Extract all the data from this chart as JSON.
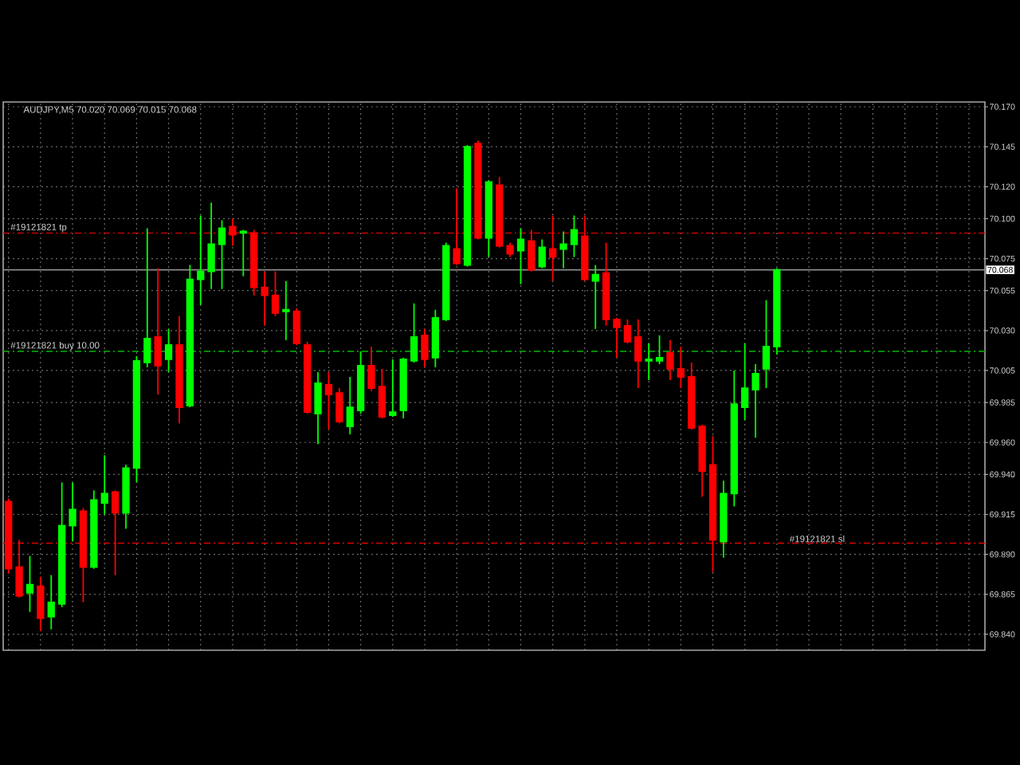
{
  "chart_data": {
    "type": "candlestick",
    "title": "AUDJPY,M5 70.020 70.069 70.015 70.068",
    "categories": [
      null,
      null,
      null,
      null,
      null,
      null,
      null,
      null,
      null,
      null,
      null,
      null,
      null,
      null,
      null,
      null,
      null,
      null,
      null,
      null,
      null,
      null,
      null,
      null,
      null,
      null,
      null,
      null,
      null,
      null,
      null,
      null,
      null,
      null,
      null,
      null,
      null,
      null,
      null,
      null,
      null,
      null,
      null,
      null,
      null,
      null,
      null,
      null,
      null,
      null,
      null,
      null,
      null,
      null,
      null,
      null,
      null,
      null,
      null,
      null,
      null,
      null,
      null,
      null,
      null,
      null,
      null,
      null,
      null,
      null,
      null,
      null,
      null,
      null,
      null,
      null,
      null,
      null,
      null,
      null,
      null,
      null,
      null,
      null,
      null,
      null,
      null,
      null,
      null,
      null,
      null,
      null
    ],
    "ohlc": [
      [
        69.923,
        69.925,
        69.878,
        69.881
      ],
      [
        69.882,
        69.899,
        69.863,
        69.864
      ],
      [
        69.866,
        69.889,
        69.854,
        69.871
      ],
      [
        69.87,
        69.876,
        69.842,
        69.85
      ],
      [
        69.851,
        69.877,
        69.843,
        69.86
      ],
      [
        69.859,
        69.935,
        69.857,
        69.908
      ],
      [
        69.908,
        69.935,
        69.898,
        69.918
      ],
      [
        69.917,
        69.919,
        69.86,
        69.882
      ],
      [
        69.882,
        69.93,
        69.881,
        69.924
      ],
      [
        69.922,
        69.952,
        69.915,
        69.928
      ],
      [
        69.929,
        69.93,
        69.877,
        69.916
      ],
      [
        69.916,
        69.946,
        69.906,
        69.944
      ],
      [
        69.944,
        70.014,
        69.935,
        70.011
      ],
      [
        70.01,
        70.094,
        70.007,
        70.025
      ],
      [
        70.026,
        70.069,
        69.99,
        70.008
      ],
      [
        70.012,
        70.031,
        70.004,
        70.021
      ],
      [
        70.021,
        70.039,
        69.972,
        69.982
      ],
      [
        69.983,
        70.071,
        69.982,
        70.062
      ],
      [
        70.062,
        70.102,
        70.046,
        70.067
      ],
      [
        70.067,
        70.11,
        70.056,
        70.084
      ],
      [
        70.084,
        70.099,
        70.056,
        70.094
      ],
      [
        70.095,
        70.1,
        70.083,
        70.09
      ],
      [
        70.091,
        70.093,
        70.064,
        70.092
      ],
      [
        70.091,
        70.093,
        70.052,
        70.057
      ],
      [
        70.057,
        70.067,
        70.033,
        70.052
      ],
      [
        70.052,
        70.067,
        70.039,
        70.041
      ],
      [
        70.042,
        70.061,
        70.024,
        70.043
      ],
      [
        70.042,
        70.044,
        70.021,
        70.022
      ],
      [
        70.021,
        70.023,
        69.978,
        69.979
      ],
      [
        69.978,
        70.004,
        69.959,
        69.997
      ],
      [
        69.996,
        70.004,
        69.968,
        69.99
      ],
      [
        69.991,
        69.994,
        69.972,
        69.973
      ],
      [
        69.97,
        70.001,
        69.965,
        69.982
      ],
      [
        69.98,
        70.017,
        69.978,
        70.008
      ],
      [
        70.008,
        70.02,
        69.992,
        69.994
      ],
      [
        69.995,
        70.006,
        69.975,
        69.976
      ],
      [
        69.977,
        70.012,
        69.976,
        69.979
      ],
      [
        69.98,
        70.013,
        69.975,
        70.012
      ],
      [
        70.011,
        70.047,
        70.01,
        70.026
      ],
      [
        70.027,
        70.031,
        70.007,
        70.012
      ],
      [
        70.013,
        70.043,
        70.007,
        70.038
      ],
      [
        70.037,
        70.085,
        70.036,
        70.083
      ],
      [
        70.081,
        70.119,
        70.071,
        70.072
      ],
      [
        70.071,
        70.146,
        70.07,
        70.145
      ],
      [
        70.147,
        70.149,
        70.087,
        70.088
      ],
      [
        70.088,
        70.124,
        70.076,
        70.123
      ],
      [
        70.121,
        70.126,
        70.082,
        70.083
      ],
      [
        70.083,
        70.085,
        70.076,
        70.078
      ],
      [
        70.08,
        70.094,
        70.059,
        70.087
      ],
      [
        70.086,
        70.093,
        70.067,
        70.068
      ],
      [
        70.07,
        70.087,
        70.069,
        70.082
      ],
      [
        70.081,
        70.102,
        70.061,
        70.076
      ],
      [
        70.081,
        70.092,
        70.069,
        70.084
      ],
      [
        70.084,
        70.102,
        70.076,
        70.093
      ],
      [
        70.089,
        70.102,
        70.061,
        70.062
      ],
      [
        70.061,
        70.071,
        70.031,
        70.065
      ],
      [
        70.066,
        70.085,
        70.033,
        70.037
      ],
      [
        70.037,
        70.038,
        70.013,
        70.032
      ],
      [
        70.033,
        70.037,
        70.022,
        70.023
      ],
      [
        70.026,
        70.037,
        69.994,
        70.011
      ],
      [
        70.011,
        70.022,
        69.999,
        70.012
      ],
      [
        70.011,
        70.027,
        70.009,
        70.013
      ],
      [
        70.016,
        70.024,
        69.999,
        70.006
      ],
      [
        70.006,
        70.02,
        69.994,
        70.001
      ],
      [
        70.001,
        70.01,
        69.968,
        69.969
      ],
      [
        69.97,
        69.971,
        69.926,
        69.942
      ],
      [
        69.946,
        69.964,
        69.879,
        69.899
      ],
      [
        69.898,
        69.936,
        69.888,
        69.928
      ],
      [
        69.928,
        70.005,
        69.92,
        69.984
      ],
      [
        69.982,
        70.022,
        69.974,
        69.994
      ],
      [
        69.993,
        70.009,
        69.963,
        70.003
      ],
      [
        70.006,
        70.049,
        69.994,
        70.02
      ],
      [
        70.02,
        70.069,
        70.015,
        70.068
      ],
      null,
      null,
      null,
      null,
      null,
      null,
      null,
      null,
      null,
      null,
      null,
      null,
      null,
      null,
      null,
      null,
      null,
      null,
      null
    ],
    "colors": [
      "#ff0000",
      "#ff0000",
      "#00ff00",
      "#ff0000",
      "#00ff00",
      "#00ff00",
      "#00ff00",
      "#ff0000",
      "#00ff00",
      "#00ff00",
      "#ff0000",
      "#00ff00",
      "#00ff00",
      "#00ff00",
      "#ff0000",
      "#00ff00",
      "#ff0000",
      "#00ff00",
      "#00ff00",
      "#00ff00",
      "#00ff00",
      "#ff0000",
      "#00ff00",
      "#ff0000",
      "#ff0000",
      "#ff0000",
      "#00ff00",
      "#ff0000",
      "#ff0000",
      "#00ff00",
      "#ff0000",
      "#ff0000",
      "#00ff00",
      "#00ff00",
      "#ff0000",
      "#ff0000",
      "#00ff00",
      "#00ff00",
      "#00ff00",
      "#ff0000",
      "#00ff00",
      "#00ff00",
      "#ff0000",
      "#00ff00",
      "#ff0000",
      "#00ff00",
      "#ff0000",
      "#ff0000",
      "#00ff00",
      "#ff0000",
      "#00ff00",
      "#ff0000",
      "#00ff00",
      "#00ff00",
      "#ff0000",
      "#00ff00",
      "#ff0000",
      "#ff0000",
      "#ff0000",
      "#ff0000",
      "#00ff00",
      "#00ff00",
      "#ff0000",
      "#ff0000",
      "#ff0000",
      "#ff0000",
      "#ff0000",
      "#00ff00",
      "#00ff00",
      "#00ff00",
      "#00ff00",
      "#00ff00",
      "#00ff00",
      null,
      null,
      null,
      null,
      null,
      null,
      null,
      null,
      null,
      null,
      null,
      null,
      null,
      null,
      null,
      null,
      null,
      null,
      null
    ],
    "ylim": [
      69.83,
      70.173
    ],
    "yticks": [
      {
        "value": 69.84,
        "label": "69.840"
      },
      {
        "value": 69.865,
        "label": "69.865"
      },
      {
        "value": 69.89,
        "label": "69.890"
      },
      {
        "value": 69.915,
        "label": "69.915"
      },
      {
        "value": 69.94,
        "label": "69.940"
      },
      {
        "value": 69.96,
        "label": "69.960"
      },
      {
        "value": 69.985,
        "label": "69.985"
      },
      {
        "value": 70.005,
        "label": "70.005"
      },
      {
        "value": 70.03,
        "label": "70.030"
      },
      {
        "value": 70.055,
        "label": "70.055"
      },
      {
        "value": 70.075,
        "label": "70.075"
      },
      {
        "value": 70.1,
        "label": "70.100"
      },
      {
        "value": 70.12,
        "label": "70.120"
      },
      {
        "value": 70.145,
        "label": "70.145"
      },
      {
        "value": 70.17,
        "label": "70.170"
      }
    ],
    "ref_lines": [
      {
        "axis": "y",
        "value": 70.091,
        "label": "#19121821 tp",
        "color": "#c80000",
        "line_style": "dashed"
      },
      {
        "axis": "y",
        "value": 70.017,
        "label": "#19121821 buy 10.00",
        "color": "#00a000",
        "line_style": "dashed"
      },
      {
        "axis": "y",
        "value": 69.897,
        "label": "#19121821 sl",
        "color": "#c80000",
        "line_style": "dashed"
      },
      {
        "axis": "y",
        "value": 70.068,
        "label": "70.068",
        "color": "#8c8c8c",
        "line_style": "solid"
      }
    ],
    "grid": true,
    "tick_labels": "y"
  }
}
